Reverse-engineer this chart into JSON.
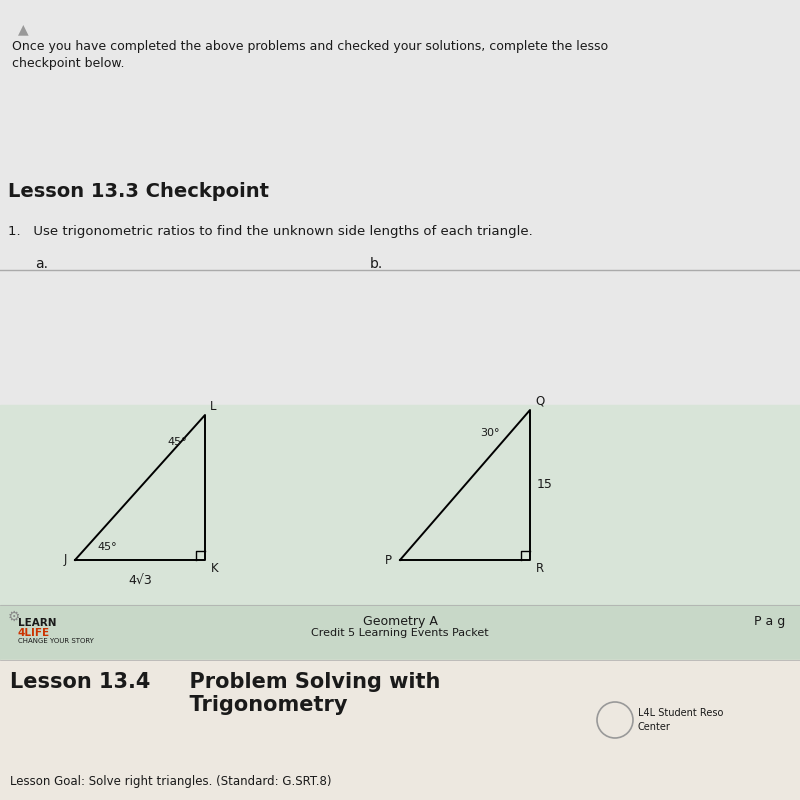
{
  "bg_light_gray": "#e8e8e8",
  "bg_greenish": "#d8e4d8",
  "bg_footer_green": "#c8d8c8",
  "bg_bottom_cream": "#ede8e0",
  "text_color": "#1a1a1a",
  "title_text": "Lesson 13.3 Checkpoint",
  "intro_line1": "Once you have completed the above problems and checked your solutions, complete the lesso",
  "intro_line2": "checkpoint below.",
  "problem_text": "1.   Use trigonometric ratios to find the unknown side lengths of each triangle.",
  "label_a": "a.",
  "label_b": "b.",
  "footer_geo": "Geometry A",
  "footer_credit": "Credit 5 Learning Events Packet",
  "footer_right": "P a g",
  "learn4life_line1": "LEARN␴4LIFE",
  "learn4life_sub": "CHANGE YOUR STORY",
  "next_lesson_title1": "Lesson 13.4   Problem Solving with",
  "next_lesson_title2": "   Trigonometry",
  "next_lesson_sub": "Lesson Goal: Solve right triangles. (Standard: G.SRT.8)",
  "l4l_label1": "L4L Student Reso",
  "l4l_label2": "Center",
  "tri_a_angle_J": "45°",
  "tri_a_angle_L": "45°",
  "tri_a_base": "4√3",
  "tri_b_angle_Q": "30°",
  "tri_b_side": "15"
}
